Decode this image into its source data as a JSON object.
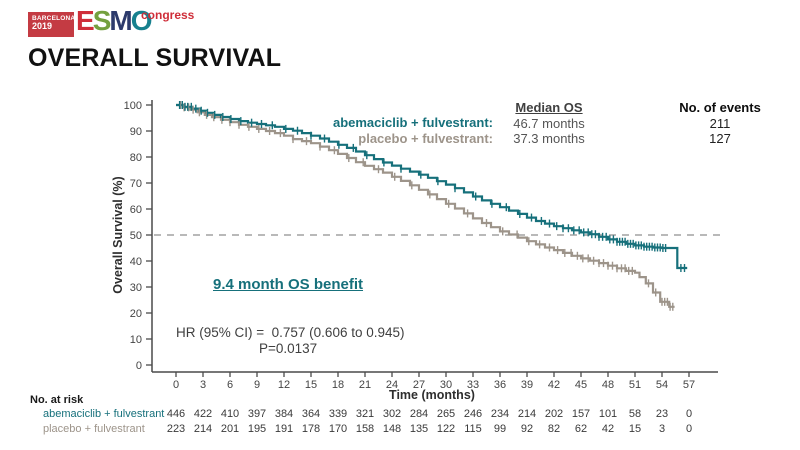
{
  "logo": {
    "venue": "BARCELONA",
    "year": "2019",
    "letters": [
      {
        "ch": "E",
        "color": "#cf2e39"
      },
      {
        "ch": "S",
        "color": "#74a03f"
      },
      {
        "ch": "M",
        "color": "#2c3a6b"
      },
      {
        "ch": "O",
        "color": "#17808e"
      }
    ],
    "suffix": "congress",
    "suffix_color": "#cf2e39",
    "box_color": "#c43b43"
  },
  "title": "OVERALL SURVIVAL",
  "legend": {
    "median_os_header": "Median OS",
    "events_header": "No. of events",
    "rows": [
      {
        "label": "abemaciclib + fulvestrant:",
        "median": "46.7 months",
        "events": "211",
        "color": "#16707b"
      },
      {
        "label": "placebo + fulvestrant:",
        "median": "37.3 months",
        "events": "127",
        "color": "#9d948a"
      }
    ]
  },
  "annotations": {
    "benefit": "9.4 month OS benefit",
    "benefit_color": "#16707b",
    "hr": "HR (95% CI) =  0.757 (0.606 to 0.945)",
    "p": "P=0.0137"
  },
  "chart_data": {
    "type": "line",
    "subtype": "kaplan-meier-step",
    "xlabel": "Time (months)",
    "ylabel": "Overall Survival (%)",
    "xlim": [
      0,
      57
    ],
    "ylim": [
      0,
      100
    ],
    "xticks": [
      0,
      3,
      6,
      9,
      12,
      15,
      18,
      21,
      24,
      27,
      30,
      33,
      36,
      39,
      42,
      45,
      48,
      51,
      54,
      57
    ],
    "yticks": [
      0,
      10,
      20,
      30,
      40,
      50,
      60,
      70,
      80,
      90,
      100
    ],
    "reference_line_y": 50,
    "grid": false,
    "series": [
      {
        "name": "abemaciclib + fulvestrant",
        "color": "#16707b",
        "median_os_months": 46.7,
        "events": 211,
        "points": [
          [
            0,
            100
          ],
          [
            0.9,
            99.3
          ],
          [
            1.8,
            98.6
          ],
          [
            2.6,
            97.8
          ],
          [
            3.4,
            97
          ],
          [
            4.2,
            96.2
          ],
          [
            5,
            95.4
          ],
          [
            6,
            94.6
          ],
          [
            7,
            93.8
          ],
          [
            8,
            93.2
          ],
          [
            9,
            92.7
          ],
          [
            10,
            92.2
          ],
          [
            11,
            91.6
          ],
          [
            12,
            90.8
          ],
          [
            13,
            90.1
          ],
          [
            14,
            89.2
          ],
          [
            15,
            88.2
          ],
          [
            16,
            87.1
          ],
          [
            17,
            85.9
          ],
          [
            18,
            84.7
          ],
          [
            19,
            83.5
          ],
          [
            20,
            82.1
          ],
          [
            21,
            80.7
          ],
          [
            22,
            79.2
          ],
          [
            23,
            77.9
          ],
          [
            24,
            76.7
          ],
          [
            25,
            75.5
          ],
          [
            26,
            74.4
          ],
          [
            27,
            73.2
          ],
          [
            28,
            72
          ],
          [
            29,
            70.7
          ],
          [
            30,
            69.4
          ],
          [
            31,
            68
          ],
          [
            32,
            66.4
          ],
          [
            33,
            64.8
          ],
          [
            34,
            63.3
          ],
          [
            35,
            62
          ],
          [
            36,
            60.7
          ],
          [
            37,
            59.4
          ],
          [
            38,
            58.1
          ],
          [
            39,
            56.7
          ],
          [
            40,
            55.4
          ],
          [
            41,
            54.4
          ],
          [
            42,
            53.4
          ],
          [
            43,
            52.6
          ],
          [
            44,
            51.8
          ],
          [
            45,
            51
          ],
          [
            46,
            50.3
          ],
          [
            47,
            49.3
          ],
          [
            48,
            48.3
          ],
          [
            49,
            47.4
          ],
          [
            50,
            46.6
          ],
          [
            51,
            46
          ],
          [
            52,
            45.5
          ],
          [
            53,
            45.2
          ],
          [
            54,
            45
          ],
          [
            55.7,
            37.3
          ],
          [
            56.8,
            37.3
          ]
        ],
        "censor_months": [
          0.4,
          0.7,
          1.0,
          1.3,
          1.7,
          2.2,
          2.8,
          3.5,
          4.3,
          5.2,
          6.1,
          7.2,
          8.4,
          9.5,
          10.7,
          12.2,
          13.5,
          15.0,
          16.5,
          18.1,
          19.7,
          21.2,
          23.1,
          25.0,
          27.2,
          29.1,
          31.0,
          33.3,
          35.1,
          36.7,
          38.2,
          39.5,
          40.6,
          41.5,
          42.3,
          43.0,
          43.6,
          44.2,
          44.8,
          45.3,
          45.8,
          46.2,
          46.6,
          47.0,
          47.4,
          47.8,
          48.2,
          48.6,
          49.0,
          49.3,
          49.6,
          49.9,
          50.2,
          50.5,
          50.8,
          51.1,
          51.4,
          51.7,
          52.0,
          52.3,
          52.6,
          52.9,
          53.2,
          53.5,
          53.8,
          54.1,
          54.4,
          56.1,
          56.5
        ]
      },
      {
        "name": "placebo + fulvestrant",
        "color": "#9d948a",
        "median_os_months": 37.3,
        "events": 127,
        "points": [
          [
            0,
            100
          ],
          [
            0.8,
            99.1
          ],
          [
            1.6,
            98.2
          ],
          [
            2.4,
            97.2
          ],
          [
            3.2,
            96.2
          ],
          [
            4,
            95.3
          ],
          [
            5,
            94.3
          ],
          [
            6,
            93.4
          ],
          [
            7,
            92.4
          ],
          [
            8,
            91.6
          ],
          [
            9,
            90.8
          ],
          [
            10,
            90
          ],
          [
            11,
            89.2
          ],
          [
            12,
            88.2
          ],
          [
            13,
            86.9
          ],
          [
            14,
            86.1
          ],
          [
            15,
            85.3
          ],
          [
            16,
            84
          ],
          [
            17,
            82.6
          ],
          [
            18,
            81.2
          ],
          [
            19,
            79.6
          ],
          [
            20,
            78
          ],
          [
            21,
            76.6
          ],
          [
            22,
            75.3
          ],
          [
            23,
            74
          ],
          [
            24,
            72.4
          ],
          [
            25,
            70.8
          ],
          [
            26,
            69.1
          ],
          [
            27,
            67.4
          ],
          [
            28,
            65.6
          ],
          [
            29,
            63.8
          ],
          [
            30,
            62
          ],
          [
            31,
            60.2
          ],
          [
            32,
            58.3
          ],
          [
            33,
            56.4
          ],
          [
            34,
            54.6
          ],
          [
            35,
            53
          ],
          [
            36,
            51.4
          ],
          [
            37,
            50.2
          ],
          [
            38,
            49
          ],
          [
            39,
            47.6
          ],
          [
            40,
            46.4
          ],
          [
            41,
            45.2
          ],
          [
            42,
            44.2
          ],
          [
            43,
            43.1
          ],
          [
            44,
            42
          ],
          [
            45,
            41
          ],
          [
            46,
            40.1
          ],
          [
            47,
            39.2
          ],
          [
            48,
            38.2
          ],
          [
            49,
            37.2
          ],
          [
            50,
            36.2
          ],
          [
            51,
            35.5
          ],
          [
            51.5,
            33.8
          ],
          [
            52.2,
            31.4
          ],
          [
            53,
            27.9
          ],
          [
            53.8,
            24.3
          ],
          [
            54.8,
            22.4
          ],
          [
            55.4,
            22.4
          ]
        ],
        "censor_months": [
          0.5,
          0.9,
          1.4,
          1.9,
          2.6,
          3.4,
          4.2,
          5.1,
          6.0,
          7.0,
          8.1,
          9.2,
          10.4,
          11.6,
          13.0,
          14.5,
          16.0,
          17.6,
          19.2,
          20.8,
          22.5,
          24.3,
          26.2,
          28.2,
          30.3,
          32.4,
          34.5,
          36.3,
          37.9,
          39.2,
          40.4,
          41.5,
          42.4,
          43.2,
          43.9,
          44.6,
          45.2,
          45.8,
          46.4,
          47.0,
          47.5,
          48.0,
          48.5,
          49.0,
          49.5,
          49.9,
          50.3,
          50.7,
          52.5,
          53.3,
          54.0,
          54.3,
          54.6,
          54.9,
          55.2
        ]
      }
    ]
  },
  "risk_table": {
    "title": "No. at risk",
    "rows": [
      {
        "label": "abemaciclib + fulvestrant",
        "color": "#16707b",
        "values": [
          446,
          422,
          410,
          397,
          384,
          364,
          339,
          321,
          302,
          284,
          265,
          246,
          234,
          214,
          202,
          157,
          101,
          58,
          23,
          0
        ]
      },
      {
        "label": "placebo + fulvestrant",
        "color": "#9d948a",
        "values": [
          223,
          214,
          201,
          195,
          191,
          178,
          170,
          158,
          148,
          135,
          122,
          115,
          99,
          92,
          82,
          62,
          42,
          15,
          3,
          0
        ]
      }
    ]
  }
}
